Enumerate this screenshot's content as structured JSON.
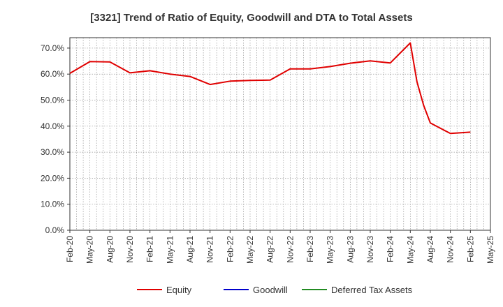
{
  "chart_data": {
    "type": "line",
    "title": "[3321]  Trend of Ratio of Equity, Goodwill and DTA to Total Assets",
    "xlabel": "",
    "ylabel": "",
    "ylim": [
      0,
      0.74
    ],
    "y_ticks": [
      {
        "value": 0.0,
        "label": "0.0%"
      },
      {
        "value": 0.1,
        "label": "10.0%"
      },
      {
        "value": 0.2,
        "label": "20.0%"
      },
      {
        "value": 0.3,
        "label": "30.0%"
      },
      {
        "value": 0.4,
        "label": "40.0%"
      },
      {
        "value": 0.5,
        "label": "50.0%"
      },
      {
        "value": 0.6,
        "label": "60.0%"
      },
      {
        "value": 0.7,
        "label": "70.0%"
      }
    ],
    "x_ticks": [
      "Feb-20",
      "May-20",
      "Aug-20",
      "Nov-20",
      "Feb-21",
      "May-21",
      "Aug-21",
      "Nov-21",
      "Feb-22",
      "May-22",
      "Aug-22",
      "Nov-22",
      "Feb-23",
      "May-23",
      "Aug-23",
      "Nov-23",
      "Feb-24",
      "May-24",
      "Aug-24",
      "Nov-24",
      "Feb-25",
      "May-25"
    ],
    "grid": true,
    "legend_position": "bottom",
    "series": [
      {
        "name": "Equity",
        "color": "#e00000",
        "x": [
          "Feb-20",
          "May-20",
          "Aug-20",
          "Nov-20",
          "Feb-21",
          "May-21",
          "Aug-21",
          "Nov-21",
          "Feb-22",
          "May-22",
          "Aug-22",
          "Nov-22",
          "Feb-23",
          "May-23",
          "Aug-23",
          "Nov-23",
          "Feb-24",
          "May-24",
          "Jun-24",
          "Jul-24",
          "Aug-24",
          "Nov-24",
          "Feb-25"
        ],
        "values": [
          0.603,
          0.648,
          0.647,
          0.605,
          0.613,
          0.6,
          0.591,
          0.56,
          0.573,
          0.576,
          0.577,
          0.62,
          0.62,
          0.629,
          0.642,
          0.651,
          0.643,
          0.72,
          0.57,
          0.48,
          0.412,
          0.372,
          0.377
        ]
      },
      {
        "name": "Goodwill",
        "color": "#0000cc",
        "x": [],
        "values": []
      },
      {
        "name": "Deferred Tax Assets",
        "color": "#228b22",
        "x": [],
        "values": []
      }
    ]
  }
}
